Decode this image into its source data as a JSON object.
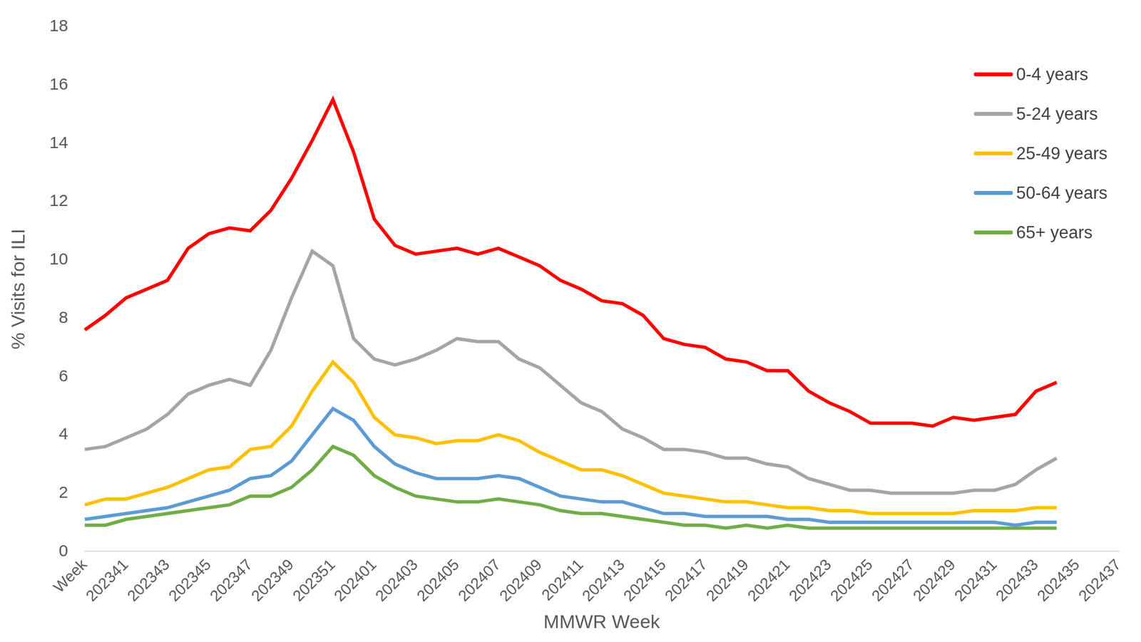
{
  "chart_data": {
    "type": "line",
    "x_label": "MMWR Week",
    "y_label": "% Visits for ILI",
    "categories": [
      "Week",
      null,
      "202341",
      null,
      "202343",
      null,
      "202345",
      null,
      "202347",
      null,
      "202349",
      null,
      "202351",
      null,
      "202401",
      null,
      "202403",
      null,
      "202405",
      null,
      "202407",
      null,
      "202409",
      null,
      "202411",
      null,
      "202413",
      null,
      "202415",
      null,
      "202417",
      null,
      "202419",
      null,
      "202421",
      null,
      "202423",
      null,
      "202425",
      null,
      "202427",
      null,
      "202429",
      null,
      "202431",
      null,
      "202433",
      null,
      "202435",
      null,
      "202437"
    ],
    "series": [
      {
        "name": "0-4 years",
        "color": "#ff0000",
        "values": [
          7.6,
          8.1,
          8.7,
          9.0,
          9.3,
          10.4,
          10.9,
          11.1,
          11.0,
          11.7,
          12.8,
          14.1,
          15.5,
          13.7,
          11.4,
          10.5,
          10.2,
          10.3,
          10.4,
          10.2,
          10.4,
          10.1,
          9.8,
          9.3,
          9.0,
          8.6,
          8.5,
          8.1,
          7.3,
          7.1,
          7.0,
          6.6,
          6.5,
          6.2,
          6.2,
          5.5,
          5.1,
          4.8,
          4.4,
          4.4,
          4.4,
          4.3,
          4.6,
          4.5,
          4.6,
          4.7,
          5.5,
          5.8,
          null,
          null,
          null
        ]
      },
      {
        "name": "5-24 years",
        "color": "#a5a5a5",
        "values": [
          3.5,
          3.6,
          3.9,
          4.2,
          4.7,
          5.4,
          5.7,
          5.9,
          5.7,
          6.9,
          8.7,
          10.3,
          9.8,
          7.3,
          6.6,
          6.4,
          6.6,
          6.9,
          7.3,
          7.2,
          7.2,
          6.6,
          6.3,
          5.7,
          5.1,
          4.8,
          4.2,
          3.9,
          3.5,
          3.5,
          3.4,
          3.2,
          3.2,
          3.0,
          2.9,
          2.5,
          2.3,
          2.1,
          2.1,
          2.0,
          2.0,
          2.0,
          2.0,
          2.1,
          2.1,
          2.3,
          2.8,
          3.2,
          null,
          null,
          null
        ]
      },
      {
        "name": "25-49 years",
        "color": "#ffc000",
        "values": [
          1.6,
          1.8,
          1.8,
          2.0,
          2.2,
          2.5,
          2.8,
          2.9,
          3.5,
          3.6,
          4.3,
          5.5,
          6.5,
          5.8,
          4.6,
          4.0,
          3.9,
          3.7,
          3.8,
          3.8,
          4.0,
          3.8,
          3.4,
          3.1,
          2.8,
          2.8,
          2.6,
          2.3,
          2.0,
          1.9,
          1.8,
          1.7,
          1.7,
          1.6,
          1.5,
          1.5,
          1.4,
          1.4,
          1.3,
          1.3,
          1.3,
          1.3,
          1.3,
          1.4,
          1.4,
          1.4,
          1.5,
          1.5,
          null,
          null,
          null
        ]
      },
      {
        "name": "50-64 years",
        "color": "#5b9bd5",
        "values": [
          1.1,
          1.2,
          1.3,
          1.4,
          1.5,
          1.7,
          1.9,
          2.1,
          2.5,
          2.6,
          3.1,
          4.0,
          4.9,
          4.5,
          3.6,
          3.0,
          2.7,
          2.5,
          2.5,
          2.5,
          2.6,
          2.5,
          2.2,
          1.9,
          1.8,
          1.7,
          1.7,
          1.5,
          1.3,
          1.3,
          1.2,
          1.2,
          1.2,
          1.2,
          1.1,
          1.1,
          1.0,
          1.0,
          1.0,
          1.0,
          1.0,
          1.0,
          1.0,
          1.0,
          1.0,
          0.9,
          1.0,
          1.0,
          null,
          null,
          null
        ]
      },
      {
        "name": "65+ years",
        "color": "#70ad47",
        "values": [
          0.9,
          0.9,
          1.1,
          1.2,
          1.3,
          1.4,
          1.5,
          1.6,
          1.9,
          1.9,
          2.2,
          2.8,
          3.6,
          3.3,
          2.6,
          2.2,
          1.9,
          1.8,
          1.7,
          1.7,
          1.8,
          1.7,
          1.6,
          1.4,
          1.3,
          1.3,
          1.2,
          1.1,
          1.0,
          0.9,
          0.9,
          0.8,
          0.9,
          0.8,
          0.9,
          0.8,
          0.8,
          0.8,
          0.8,
          0.8,
          0.8,
          0.8,
          0.8,
          0.8,
          0.8,
          0.8,
          0.8,
          0.8,
          null,
          null,
          null
        ]
      }
    ],
    "ylim": [
      0,
      18
    ],
    "yticks": [
      0,
      2,
      4,
      6,
      8,
      10,
      12,
      14,
      16,
      18
    ],
    "grid": false,
    "legend": "upper right"
  }
}
